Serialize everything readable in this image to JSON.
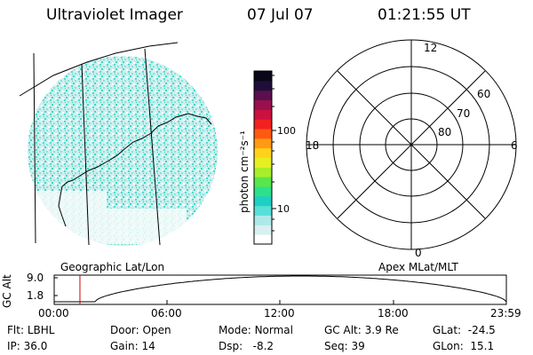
{
  "header": {
    "title": "Ultraviolet Imager",
    "date": "07 Jul 07",
    "time": "01:21:55 UT"
  },
  "colorbar": {
    "unit_label": "photon cm⁻²s⁻¹",
    "ticks": [
      "100",
      "10"
    ],
    "colors": [
      "#ffffff",
      "#d8f0f0",
      "#aee8e8",
      "#58e0d8",
      "#1ecfc4",
      "#2ee08a",
      "#5ae64a",
      "#a8ee2a",
      "#e6f020",
      "#ffd21a",
      "#ff9a14",
      "#ff5a10",
      "#f22020",
      "#cc1040",
      "#99104c",
      "#5a104e",
      "#200e3a",
      "#0a0818"
    ]
  },
  "left_panel": {
    "caption": "Geographic Lat/Lon"
  },
  "polar_plot": {
    "caption": "Apex MLat/MLT",
    "mlt_labels": {
      "top": "12",
      "bottom": "0",
      "left": "18",
      "right": "6"
    },
    "mlat_labels": [
      "60",
      "70",
      "80"
    ]
  },
  "timeline": {
    "ylabel": "GC Alt",
    "y_ticks": [
      "9.0",
      "1.8"
    ],
    "x_ticks": [
      "00:00",
      "06:00",
      "12:00",
      "18:00",
      "23:59"
    ],
    "marker_time": "01:21:55",
    "marker_color": "#cc0000"
  },
  "info": {
    "row1": [
      {
        "label": "Flt:",
        "value": "LBHL"
      },
      {
        "label": "Door:",
        "value": "Open"
      },
      {
        "label": "Mode:",
        "value": "Normal"
      },
      {
        "label": "GC Alt:",
        "value": "3.9 Re"
      },
      {
        "label": "GLat:",
        "value": "-24.5"
      }
    ],
    "row2": [
      {
        "label": "IP:",
        "value": "36.0"
      },
      {
        "label": "Gain:",
        "value": "14"
      },
      {
        "label": "Dsp:",
        "value": "-8.2"
      },
      {
        "label": "Seq:",
        "value": "39"
      },
      {
        "label": "GLon:",
        "value": "15.1"
      }
    ]
  }
}
